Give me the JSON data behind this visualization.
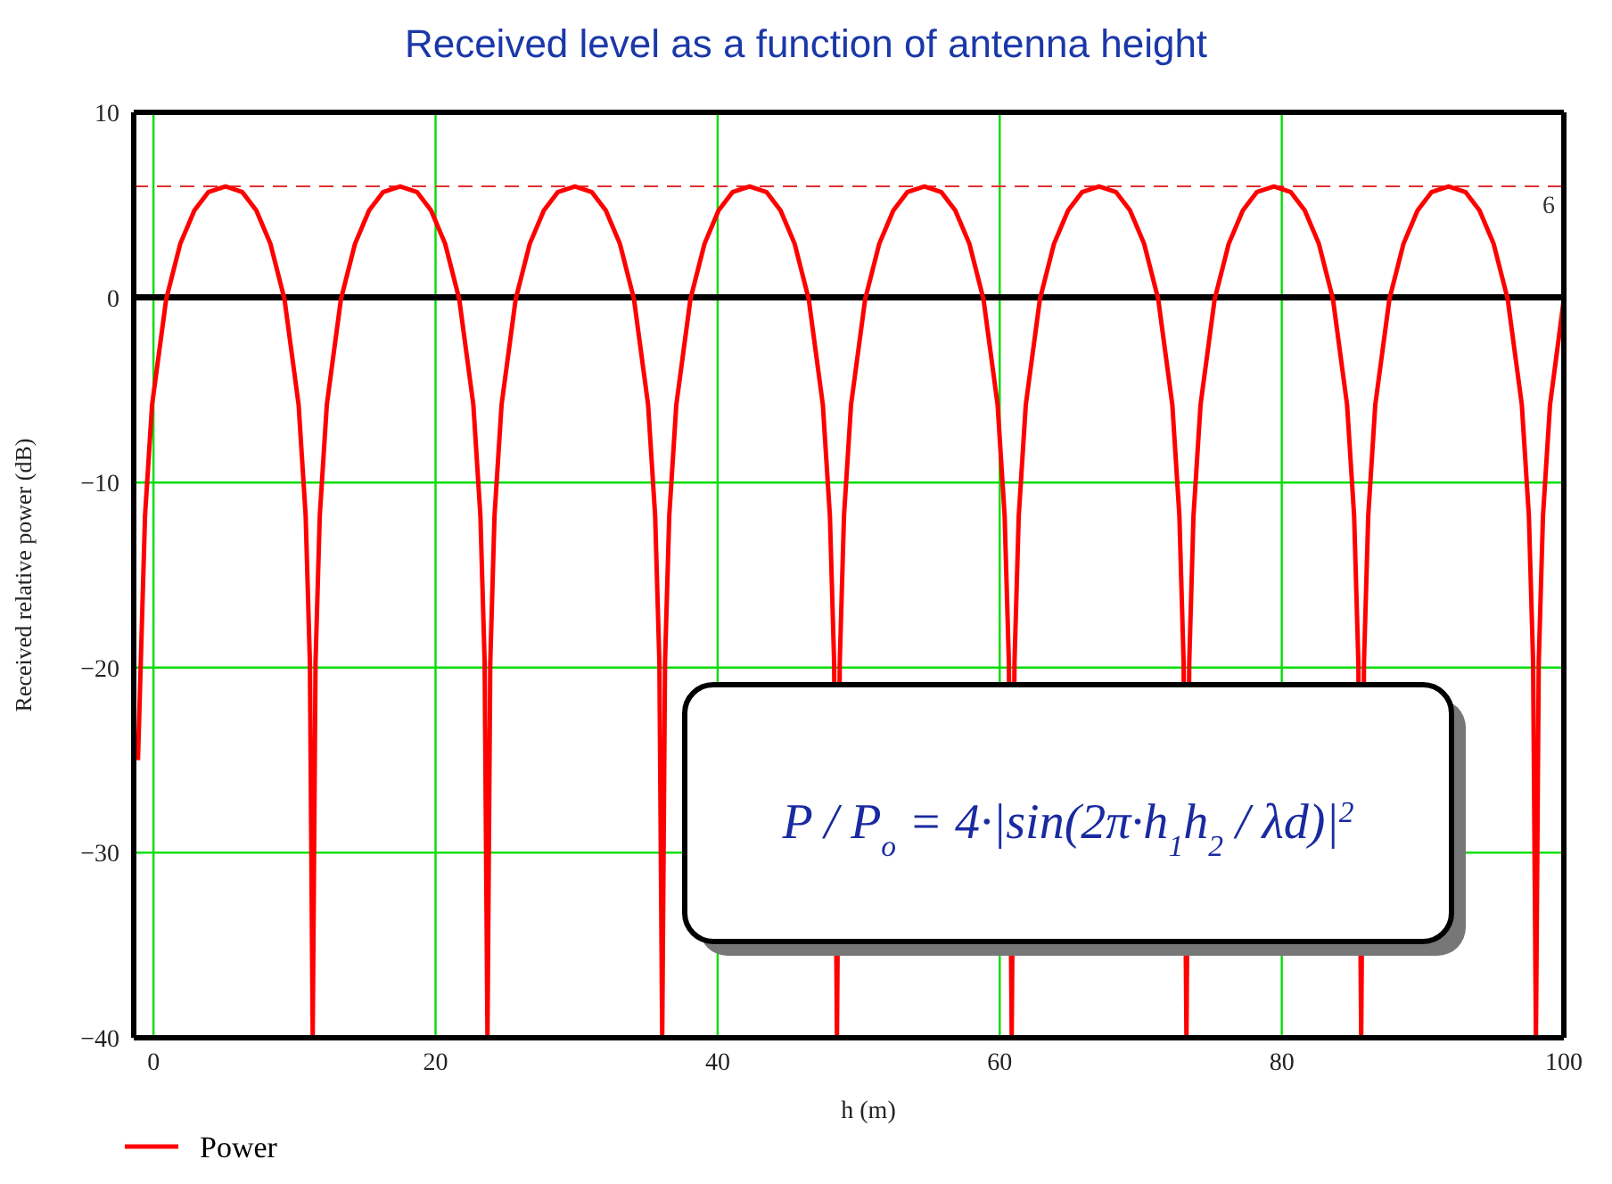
{
  "chart_data": {
    "type": "line",
    "title": "Received level as a function of antenna height",
    "xlabel": "h (m)",
    "ylabel": "Received relative power (dB)",
    "xlim": [
      -1.4,
      100
    ],
    "xticks": [
      0,
      20,
      40,
      60,
      80,
      100
    ],
    "ylim": [
      -40,
      10
    ],
    "yticks": [
      -40,
      -30,
      -20,
      -10,
      0,
      10
    ],
    "grid": true,
    "legend": "bottom left",
    "ref_lines": [
      {
        "axis": "y",
        "value": 6,
        "label": "6",
        "color": "#e03030",
        "line_style": "dashed"
      },
      {
        "axis": "y",
        "value": 0,
        "color": "#000000",
        "line_style": "solid"
      }
    ],
    "annotations": [
      "P / P$_{o}$ = 4·|sin(2π·h$_{1}$h$_{2}$ / λd)|$^{2}$"
    ],
    "series": [
      {
        "name": "Power",
        "color": "#ff0000",
        "x": [
          -1.1,
          -0.9,
          -0.6,
          -0.1,
          0.9,
          1.9,
          2.9,
          3.9,
          5.1,
          6.29,
          7.29,
          8.29,
          9.29,
          10.29,
          10.79,
          11.09,
          11.29,
          11.49,
          11.79,
          12.29,
          13.29,
          14.29,
          15.29,
          16.29,
          17.49,
          18.68,
          19.68,
          20.68,
          21.68,
          22.68,
          23.18,
          23.48,
          23.68,
          23.88,
          24.18,
          24.68,
          25.68,
          26.68,
          27.68,
          28.68,
          29.88,
          31.07,
          32.07,
          33.07,
          34.07,
          35.07,
          35.57,
          35.87,
          36.07,
          36.27,
          36.57,
          37.07,
          38.07,
          39.07,
          40.07,
          41.07,
          42.27,
          43.46,
          44.46,
          45.46,
          46.46,
          47.46,
          47.96,
          48.26,
          48.46,
          48.66,
          48.96,
          49.46,
          50.46,
          51.46,
          52.46,
          53.46,
          54.66,
          55.85,
          56.85,
          57.85,
          58.85,
          59.85,
          60.35,
          60.65,
          60.85,
          61.05,
          61.35,
          61.85,
          62.85,
          63.85,
          64.85,
          65.85,
          67.05,
          68.24,
          69.24,
          70.24,
          71.24,
          72.24,
          72.74,
          73.04,
          73.24,
          73.44,
          73.74,
          74.24,
          75.24,
          76.24,
          77.24,
          78.24,
          79.44,
          80.63,
          81.63,
          82.63,
          83.63,
          84.63,
          85.13,
          85.43,
          85.63,
          85.83,
          86.13,
          86.63,
          87.63,
          88.63,
          89.63,
          90.63,
          91.83,
          93.02,
          94.02,
          95.02,
          96.02,
          97.02,
          97.52,
          97.82,
          98.02,
          98.22,
          98.52,
          99.02,
          100
        ],
        "values": [
          -25,
          -19.7,
          -11.8,
          -5.8,
          -0.1,
          2.9,
          4.7,
          5.7,
          6,
          5.7,
          4.7,
          2.9,
          -0.1,
          -5.8,
          -11.8,
          -19.7,
          -40,
          -19.7,
          -11.8,
          -5.8,
          -0.1,
          2.9,
          4.7,
          5.7,
          6,
          5.7,
          4.7,
          2.9,
          -0.1,
          -5.8,
          -11.8,
          -19.7,
          -40,
          -19.7,
          -11.8,
          -5.8,
          -0.1,
          2.9,
          4.7,
          5.7,
          6,
          5.7,
          4.7,
          2.9,
          -0.1,
          -5.8,
          -11.8,
          -19.7,
          -40,
          -19.7,
          -11.8,
          -5.8,
          -0.1,
          2.9,
          4.7,
          5.7,
          6,
          5.7,
          4.7,
          2.9,
          -0.1,
          -5.8,
          -11.8,
          -19.7,
          -40,
          -19.7,
          -11.8,
          -5.8,
          -0.1,
          2.9,
          4.7,
          5.7,
          6,
          5.7,
          4.7,
          2.9,
          -0.1,
          -5.8,
          -11.8,
          -19.7,
          -40,
          -19.7,
          -11.8,
          -5.8,
          -0.1,
          2.9,
          4.7,
          5.7,
          6,
          5.7,
          4.7,
          2.9,
          -0.1,
          -5.8,
          -11.8,
          -19.7,
          -40,
          -19.7,
          -11.8,
          -5.8,
          -0.1,
          2.9,
          4.7,
          5.7,
          6,
          5.7,
          4.7,
          2.9,
          -0.1,
          -5.8,
          -11.8,
          -19.7,
          -40,
          -19.7,
          -11.8,
          -5.8,
          -0.1,
          2.9,
          4.7,
          5.7,
          6,
          5.7,
          4.7,
          2.9,
          -0.1,
          -5.8,
          -11.8,
          -19.7,
          -40,
          -19.7,
          -11.8,
          -5.8,
          -0.1
        ]
      }
    ]
  }
}
